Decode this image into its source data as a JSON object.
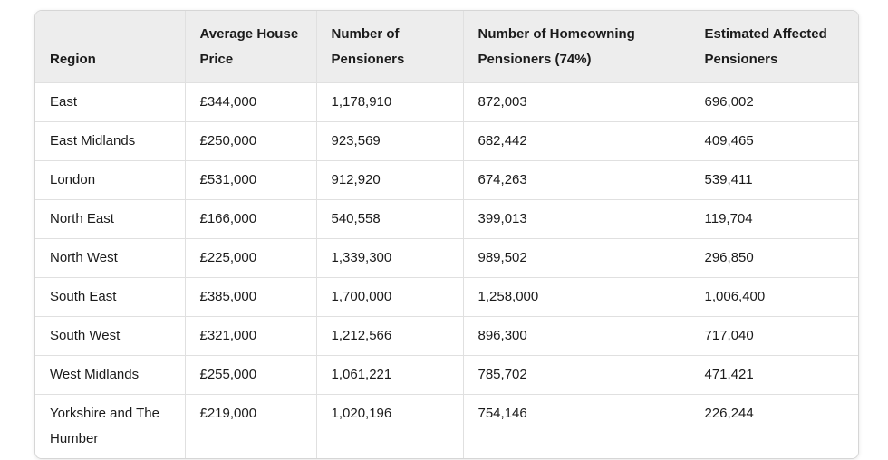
{
  "chart_data": {
    "type": "table",
    "columns": [
      "Region",
      "Average House Price",
      "Number of Pensioners",
      "Number of Homeowning Pensioners (74%)",
      "Estimated Affected Pensioners"
    ],
    "rows": [
      [
        "East",
        "£344,000",
        "1,178,910",
        "872,003",
        "696,002"
      ],
      [
        "East Midlands",
        "£250,000",
        "923,569",
        "682,442",
        "409,465"
      ],
      [
        "London",
        "£531,000",
        "912,920",
        "674,263",
        "539,411"
      ],
      [
        "North East",
        "£166,000",
        "540,558",
        "399,013",
        "119,704"
      ],
      [
        "North West",
        "£225,000",
        "1,339,300",
        "989,502",
        "296,850"
      ],
      [
        "South East",
        "£385,000",
        "1,700,000",
        "1,258,000",
        "1,006,400"
      ],
      [
        "South West",
        "£321,000",
        "1,212,566",
        "896,300",
        "717,040"
      ],
      [
        "West Midlands",
        "£255,000",
        "1,061,221",
        "785,702",
        "471,421"
      ],
      [
        "Yorkshire and The Humber",
        "£219,000",
        "1,020,196",
        "754,146",
        "226,244"
      ]
    ]
  },
  "colors": {
    "header_bg": "#ededed",
    "grid_line": "#e0e0e0",
    "outer_border": "#d6d6d6",
    "text": "#1b1b1b",
    "row_bg": "#ffffff"
  }
}
